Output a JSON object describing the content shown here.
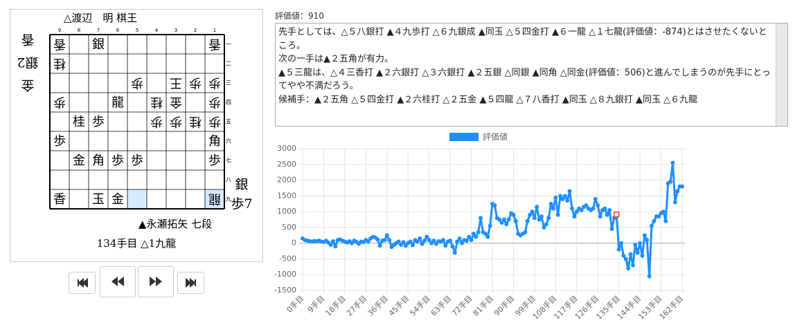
{
  "board": {
    "header": "△渡辺　明 棋王",
    "files": [
      "9",
      "8",
      "7",
      "6",
      "5",
      "4",
      "3",
      "2",
      "1"
    ],
    "ranks": [
      "一",
      "二",
      "三",
      "四",
      "五",
      "六",
      "七",
      "八",
      "九"
    ],
    "rows": [
      [
        {
          "piece": "香",
          "gote": true
        },
        null,
        {
          "piece": "銀",
          "gote": false
        },
        null,
        null,
        null,
        null,
        null,
        {
          "piece": "香",
          "gote": true
        }
      ],
      [
        {
          "piece": "桂",
          "gote": true
        },
        null,
        null,
        null,
        null,
        null,
        null,
        null,
        null
      ],
      [
        null,
        null,
        null,
        null,
        {
          "piece": "歩",
          "gote": true
        },
        null,
        {
          "piece": "王",
          "gote": true
        },
        {
          "piece": "歩",
          "gote": true
        },
        {
          "piece": "歩",
          "gote": true
        }
      ],
      [
        {
          "piece": "歩",
          "gote": true
        },
        null,
        null,
        {
          "piece": "龍",
          "gote": false
        },
        null,
        {
          "piece": "桂",
          "gote": true
        },
        {
          "piece": "金",
          "gote": true
        },
        null,
        {
          "piece": "歩",
          "gote": true
        }
      ],
      [
        null,
        {
          "piece": "桂",
          "gote": false
        },
        {
          "piece": "歩",
          "gote": false
        },
        null,
        null,
        {
          "piece": "歩",
          "gote": true
        },
        {
          "piece": "歩",
          "gote": true
        },
        {
          "piece": "桂",
          "gote": true
        },
        {
          "piece": "歩",
          "gote": true
        }
      ],
      [
        {
          "piece": "歩",
          "gote": false
        },
        null,
        null,
        null,
        null,
        null,
        null,
        null,
        {
          "piece": "角",
          "gote": false
        }
      ],
      [
        null,
        {
          "piece": "金",
          "gote": false
        },
        {
          "piece": "角",
          "gote": false
        },
        {
          "piece": "歩",
          "gote": false
        },
        {
          "piece": "歩",
          "gote": false
        },
        null,
        null,
        null,
        {
          "piece": "歩",
          "gote": false
        }
      ],
      [
        null,
        null,
        null,
        null,
        null,
        null,
        null,
        null,
        null
      ],
      [
        {
          "piece": "香",
          "gote": false
        },
        null,
        {
          "piece": "玉",
          "gote": false
        },
        {
          "piece": "金",
          "gote": false
        },
        {
          "highlighted": true
        },
        null,
        null,
        null,
        {
          "piece": "龍",
          "gote": true,
          "highlighted": true
        }
      ]
    ],
    "gote_hand": [
      "金",
      "銀2",
      "香"
    ],
    "sente_hand": [
      "銀",
      "歩7"
    ],
    "sente_player": "▲永瀬拓矢 七段",
    "move": "134手目 △1九龍"
  },
  "commentary": {
    "label": "評価値：910",
    "paragraphs": [
      "先手としては、△５八銀打 ▲４九歩打 △６九銀成 ▲同玉 △５四金打 ▲６一龍 △１七龍(評価値：-874)とはさせたくないところ。",
      "次の一手は▲２五角が有力。",
      "▲５三龍は、△４三香打 ▲２六銀打 △３六銀打 ▲２五銀 △同銀 ▲同角 △同金(評価値：506)と進んでしまうのが先手にとってやや不満だろう。",
      "候補手：▲２五角 △５四金打 ▲２六桂打 △２五金 ▲５四龍 △７八香打 ▲同玉 △８九銀打 ▲同玉 △６九龍"
    ]
  },
  "chart_data": {
    "type": "line",
    "grid": true,
    "legend": "top",
    "highlight_x": 134,
    "series": [
      {
        "name": "評価値",
        "color": "#1e90ff",
        "values": [
          150,
          100,
          80,
          60,
          50,
          70,
          60,
          80,
          50,
          40,
          80,
          20,
          -50,
          60,
          -100,
          100,
          120,
          80,
          50,
          20,
          60,
          0,
          80,
          40,
          -20,
          50,
          30,
          100,
          50,
          150,
          200,
          180,
          120,
          -80,
          80,
          100,
          250,
          100,
          -120,
          -50,
          0,
          50,
          -50,
          30,
          -80,
          0,
          50,
          -60,
          100,
          50,
          150,
          -20,
          80,
          200,
          100,
          0,
          80,
          -20,
          60,
          50,
          100,
          -80,
          50,
          80,
          -100,
          -300,
          50,
          150,
          0,
          100,
          80,
          200,
          100,
          300,
          200,
          350,
          800,
          350,
          300,
          200,
          550,
          1250,
          1200,
          800,
          750,
          650,
          750,
          600,
          750,
          950,
          900,
          700,
          300,
          250,
          300,
          350,
          700,
          900,
          1000,
          800,
          1150,
          750,
          850,
          500,
          600,
          800,
          1250,
          1100,
          1450,
          900,
          1500,
          1400,
          1500,
          1350,
          1650,
          1100,
          850,
          1000,
          1100,
          1050,
          1150,
          1200,
          1100,
          1050,
          1100,
          1400,
          1200,
          850,
          1050,
          1100,
          900,
          1050,
          450,
          800,
          910,
          -200,
          0,
          -400,
          -500,
          -800,
          -350,
          -700,
          -50,
          -300,
          0,
          -400,
          250,
          100,
          -1050,
          550,
          700,
          850,
          850,
          950,
          1000,
          700,
          1900,
          1950,
          2550,
          1300,
          1650,
          1800,
          1800
        ]
      }
    ],
    "x": [
      0,
      1,
      2,
      3,
      4,
      5,
      6,
      7,
      8,
      9,
      10,
      11,
      12,
      13,
      14,
      15,
      16,
      17,
      18,
      19,
      20,
      21,
      22,
      23,
      24,
      25,
      26,
      27,
      28,
      29,
      30,
      31,
      32,
      33,
      34,
      35,
      36,
      37,
      38,
      39,
      40,
      41,
      42,
      43,
      44,
      45,
      46,
      47,
      48,
      49,
      50,
      51,
      52,
      53,
      54,
      55,
      56,
      57,
      58,
      59,
      60,
      61,
      62,
      63,
      64,
      65,
      66,
      67,
      68,
      69,
      70,
      71,
      72,
      73,
      74,
      75,
      76,
      77,
      78,
      79,
      80,
      81,
      82,
      83,
      84,
      85,
      86,
      87,
      88,
      89,
      90,
      91,
      92,
      93,
      94,
      95,
      96,
      97,
      98,
      99,
      100,
      101,
      102,
      103,
      104,
      105,
      106,
      107,
      108,
      109,
      110,
      111,
      112,
      113,
      114,
      115,
      116,
      117,
      118,
      119,
      120,
      121,
      122,
      123,
      124,
      125,
      126,
      127,
      128,
      129,
      130,
      131,
      132,
      133,
      134,
      135,
      136,
      137,
      138,
      139,
      140,
      141,
      142,
      143,
      144,
      145,
      146,
      147,
      148,
      149,
      150,
      151,
      152,
      153,
      154,
      155,
      156,
      157,
      158,
      159,
      160,
      161,
      162
    ],
    "xlim": [
      0,
      162
    ],
    "xticks": [
      {
        "value": 0,
        "label": "0手目"
      },
      {
        "value": 9,
        "label": "9手目"
      },
      {
        "value": 18,
        "label": "18手目"
      },
      {
        "value": 27,
        "label": "27手目"
      },
      {
        "value": 36,
        "label": "36手目"
      },
      {
        "value": 45,
        "label": "45手目"
      },
      {
        "value": 54,
        "label": "54手目"
      },
      {
        "value": 63,
        "label": "63手目"
      },
      {
        "value": 72,
        "label": "72手目"
      },
      {
        "value": 81,
        "label": "81手目"
      },
      {
        "value": 90,
        "label": "90手目"
      },
      {
        "value": 99,
        "label": "99手目"
      },
      {
        "value": 108,
        "label": "108手目"
      },
      {
        "value": 117,
        "label": "117手目"
      },
      {
        "value": 126,
        "label": "126手目"
      },
      {
        "value": 135,
        "label": "135手目"
      },
      {
        "value": 144,
        "label": "144手目"
      },
      {
        "value": 153,
        "label": "153手目"
      },
      {
        "value": 162,
        "label": "162手目"
      }
    ],
    "ylim": [
      -1500,
      3000
    ],
    "yticks": [
      -1500,
      -1000,
      -500,
      0,
      500,
      1000,
      1500,
      2000,
      2500,
      3000
    ]
  }
}
